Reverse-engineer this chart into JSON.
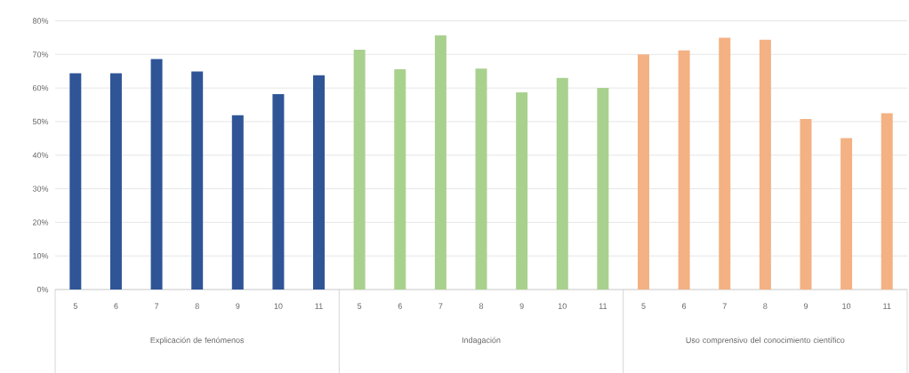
{
  "chart_data": {
    "type": "bar",
    "categories": [
      "5",
      "6",
      "7",
      "8",
      "9",
      "10",
      "11",
      "5",
      "6",
      "7",
      "8",
      "9",
      "10",
      "11",
      "5",
      "6",
      "7",
      "8",
      "9",
      "10",
      "11"
    ],
    "values": [
      64.4,
      64.4,
      68.6,
      64.9,
      51.9,
      58.2,
      63.8,
      71.4,
      65.6,
      75.7,
      65.8,
      58.7,
      63.0,
      60.0,
      70.0,
      71.2,
      75.0,
      74.4,
      50.8,
      45.1,
      52.5
    ],
    "colors": [
      "#2f5597",
      "#2f5597",
      "#2f5597",
      "#2f5597",
      "#2f5597",
      "#2f5597",
      "#2f5597",
      "#a9d18e",
      "#a9d18e",
      "#a9d18e",
      "#a9d18e",
      "#a9d18e",
      "#a9d18e",
      "#a9d18e",
      "#f4b183",
      "#f4b183",
      "#f4b183",
      "#f4b183",
      "#f4b183",
      "#f4b183",
      "#f4b183"
    ],
    "ylim": [
      0,
      80
    ],
    "yticks": [
      {
        "value": 0,
        "label": "0%"
      },
      {
        "value": 10,
        "label": "10%"
      },
      {
        "value": 20,
        "label": "20%"
      },
      {
        "value": 30,
        "label": "30%"
      },
      {
        "value": 40,
        "label": "40%"
      },
      {
        "value": 50,
        "label": "50%"
      },
      {
        "value": 60,
        "label": "60%"
      },
      {
        "value": 70,
        "label": "70%"
      },
      {
        "value": 80,
        "label": "80%"
      }
    ],
    "grid": "y",
    "annotations": [
      "Explicación de fenómenos",
      "Indagación",
      "Uso comprensivo del conocimiento científico"
    ]
  }
}
